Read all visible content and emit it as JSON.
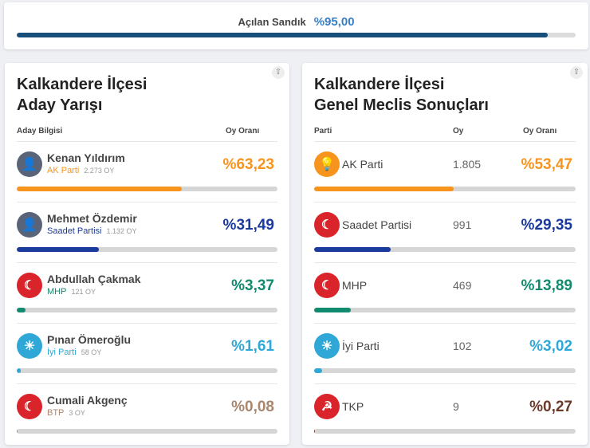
{
  "summary": {
    "label": "Açılan Sandık",
    "value": "%95,00",
    "percent": 95
  },
  "left": {
    "title_line1": "Kalkandere İlçesi",
    "title_line2": "Aday Yarışı",
    "col1": "Aday Bilgisi",
    "col2": "Oy Oranı",
    "rows": [
      {
        "name": "Kenan Yıldırım",
        "party": "AK Parti",
        "votes": "2.273 OY",
        "pct": "%63,23",
        "percent": 63.23,
        "color": "#f7941d",
        "logo": "candidate-photo"
      },
      {
        "name": "Mehmet Özdemir",
        "party": "Saadet Partisi",
        "votes": "1.132 OY",
        "pct": "%31,49",
        "percent": 31.49,
        "color": "#1a3a9c",
        "logo": "candidate-photo"
      },
      {
        "name": "Abdullah Çakmak",
        "party": "MHP",
        "votes": "121 OY",
        "pct": "%3,37",
        "percent": 3.37,
        "color": "#128a6e",
        "logo": "mhp-logo"
      },
      {
        "name": "Pınar Ömeroğlu",
        "party": "İyi Parti",
        "votes": "58 OY",
        "pct": "%1,61",
        "percent": 1.61,
        "color": "#2fa8d8",
        "logo": "iyi-logo"
      },
      {
        "name": "Cumali Akgenç",
        "party": "BTP",
        "votes": "3 OY",
        "pct": "%0,08",
        "percent": 0.08,
        "color": "#a8876e",
        "logo": "btp-logo"
      }
    ]
  },
  "right": {
    "title_line1": "Kalkandere İlçesi",
    "title_line2": "Genel Meclis Sonuçları",
    "col1": "Parti",
    "col2": "Oy",
    "col3": "Oy Oranı",
    "rows": [
      {
        "party": "AK Parti",
        "votes": "1.805",
        "pct": "%53,47",
        "percent": 53.47,
        "color": "#f7941d",
        "logo": "akp-logo"
      },
      {
        "party": "Saadet Partisi",
        "votes": "991",
        "pct": "%29,35",
        "percent": 29.35,
        "color": "#1a3a9c",
        "logo": "saadet-logo"
      },
      {
        "party": "MHP",
        "votes": "469",
        "pct": "%13,89",
        "percent": 13.89,
        "color": "#128a6e",
        "logo": "mhp-logo"
      },
      {
        "party": "İyi Parti",
        "votes": "102",
        "pct": "%3,02",
        "percent": 3.02,
        "color": "#2fa8d8",
        "logo": "iyi-logo"
      },
      {
        "party": "TKP",
        "votes": "9",
        "pct": "%0,27",
        "percent": 0.27,
        "color": "#6b3a2a",
        "logo": "tkp-logo"
      }
    ]
  }
}
